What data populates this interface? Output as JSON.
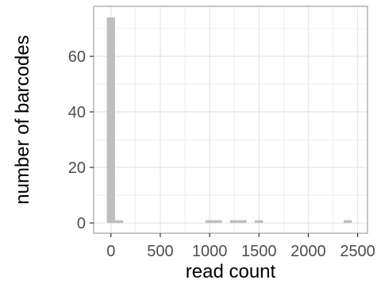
{
  "chart_data": {
    "type": "bar",
    "subtype": "histogram",
    "xlabel": "read count",
    "ylabel": "number of barcodes",
    "xlim": [
      -175,
      2600
    ],
    "ylim": [
      -3.7,
      78
    ],
    "x_ticks": [
      0,
      500,
      1000,
      1500,
      2000,
      2500
    ],
    "x_tick_labels": [
      "0",
      "500",
      "1000",
      "1500",
      "2000",
      "2500"
    ],
    "y_ticks": [
      0,
      20,
      40,
      60
    ],
    "y_tick_labels": [
      "0",
      "20",
      "40",
      "60"
    ],
    "bin_width": 83,
    "bins": [
      {
        "center": 0,
        "count": 74
      },
      {
        "center": 83,
        "count": 1
      },
      {
        "center": 1000,
        "count": 1
      },
      {
        "center": 1083,
        "count": 1
      },
      {
        "center": 1250,
        "count": 1
      },
      {
        "center": 1333,
        "count": 1
      },
      {
        "center": 1500,
        "count": 1
      },
      {
        "center": 2400,
        "count": 1
      }
    ],
    "grid": true,
    "bar_color": "#bebebe",
    "panel_border_color": "#b3b3b3",
    "grid_color": "#e5e5e5"
  }
}
